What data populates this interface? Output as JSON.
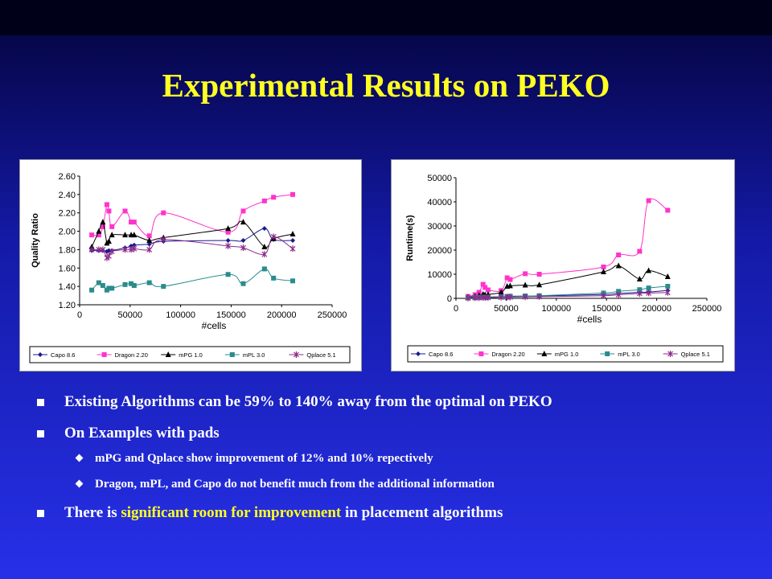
{
  "title": "Experimental Results on PEKO",
  "bullets": {
    "b1": "Existing Algorithms can be 59% to 140% away from the optimal on PEKO",
    "b2": "On Examples with pads",
    "sub1": "mPG and Qplace show improvement of 12% and 10% repectively",
    "sub2": "Dragon, mPL, and Capo do not benefit much from the additional information",
    "b3_pre": "There is ",
    "b3_highlight": "significant room for improvement",
    "b3_post": " in placement algorithms"
  },
  "chart_data": [
    {
      "type": "line",
      "xlabel": "#cells",
      "ylabel": "Quality Ratio",
      "xlim": [
        0,
        250000
      ],
      "ylim": [
        1.2,
        2.6
      ],
      "xticks": [
        0,
        50000,
        100000,
        150000,
        200000,
        250000
      ],
      "yticks": [
        1.2,
        1.4,
        1.6,
        1.8,
        2.0,
        2.2,
        2.4,
        2.6
      ],
      "ytick_labels": [
        "1.20",
        "1.40",
        "1.60",
        "1.80",
        "2.00",
        "2.20",
        "2.40",
        "2.60"
      ],
      "legend_position": "bottom",
      "series": [
        {
          "name": "Capo 8.6",
          "color": "#1a1a8c",
          "marker": "diamond",
          "x": [
            12000,
            19000,
            23000,
            27000,
            29000,
            32000,
            45000,
            51000,
            54000,
            69000,
            83000,
            147000,
            162000,
            183000,
            192000,
            211000
          ],
          "y": [
            1.79,
            1.79,
            1.79,
            1.78,
            1.79,
            1.79,
            1.82,
            1.84,
            1.85,
            1.86,
            1.89,
            1.9,
            1.9,
            2.03,
            1.91,
            1.9
          ]
        },
        {
          "name": "Dragon 2.20",
          "color": "#ff33cc",
          "marker": "square",
          "x": [
            12000,
            19000,
            23000,
            27000,
            29000,
            32000,
            45000,
            51000,
            54000,
            69000,
            83000,
            147000,
            162000,
            183000,
            192000,
            211000
          ],
          "y": [
            1.96,
            1.96,
            2.05,
            2.29,
            2.22,
            2.05,
            2.22,
            2.1,
            2.1,
            1.95,
            2.2,
            1.99,
            2.22,
            2.33,
            2.37,
            2.4
          ]
        },
        {
          "name": "mPG 1.0",
          "color": "#000000",
          "marker": "triangle",
          "x": [
            12000,
            19000,
            23000,
            27000,
            29000,
            32000,
            45000,
            51000,
            54000,
            69000,
            83000,
            147000,
            162000,
            183000,
            192000,
            211000
          ],
          "y": [
            1.83,
            2.0,
            2.1,
            1.87,
            1.89,
            1.96,
            1.96,
            1.96,
            1.96,
            1.9,
            1.93,
            2.03,
            2.1,
            1.83,
            1.92,
            1.97
          ]
        },
        {
          "name": "mPL 3.0",
          "color": "#2a8c8c",
          "marker": "square",
          "x": [
            12000,
            19000,
            23000,
            27000,
            29000,
            32000,
            45000,
            51000,
            54000,
            69000,
            83000,
            147000,
            162000,
            183000,
            192000,
            211000
          ],
          "y": [
            1.36,
            1.44,
            1.41,
            1.36,
            1.38,
            1.38,
            1.42,
            1.43,
            1.41,
            1.44,
            1.4,
            1.53,
            1.43,
            1.59,
            1.49,
            1.46
          ]
        },
        {
          "name": "Qplace 5.1",
          "color": "#8c2a8c",
          "marker": "star",
          "x": [
            12000,
            19000,
            23000,
            27000,
            29000,
            32000,
            45000,
            51000,
            54000,
            69000,
            83000,
            147000,
            162000,
            183000,
            192000,
            211000
          ],
          "y": [
            1.8,
            1.8,
            1.8,
            1.71,
            1.73,
            1.78,
            1.8,
            1.8,
            1.81,
            1.8,
            1.91,
            1.84,
            1.82,
            1.75,
            1.94,
            1.81
          ]
        }
      ]
    },
    {
      "type": "line",
      "xlabel": "#cells",
      "ylabel": "Runtime(s)",
      "xlim": [
        0,
        250000
      ],
      "ylim": [
        0,
        50000
      ],
      "xticks": [
        0,
        50000,
        100000,
        150000,
        200000,
        250000
      ],
      "yticks": [
        0,
        10000,
        20000,
        30000,
        40000,
        50000
      ],
      "ytick_labels": [
        "0",
        "10000",
        "20000",
        "30000",
        "40000",
        "50000"
      ],
      "legend_position": "bottom",
      "series": [
        {
          "name": "Capo 8.6",
          "color": "#1a1a8c",
          "marker": "diamond",
          "x": [
            12000,
            19000,
            23000,
            27000,
            29000,
            32000,
            45000,
            51000,
            54000,
            69000,
            83000,
            147000,
            162000,
            183000,
            192000,
            211000
          ],
          "y": [
            300,
            400,
            400,
            500,
            500,
            500,
            700,
            700,
            800,
            900,
            1000,
            1600,
            2000,
            2500,
            2600,
            3300
          ]
        },
        {
          "name": "Dragon 2.20",
          "color": "#ff33cc",
          "marker": "square",
          "x": [
            12000,
            19000,
            23000,
            27000,
            29000,
            32000,
            45000,
            51000,
            54000,
            69000,
            83000,
            147000,
            162000,
            183000,
            192000,
            211000
          ],
          "y": [
            800,
            1500,
            2500,
            5800,
            4500,
            3500,
            3200,
            8500,
            7800,
            10200,
            10000,
            13000,
            18000,
            19500,
            40500,
            36500
          ]
        },
        {
          "name": "mPG 1.0",
          "color": "#000000",
          "marker": "triangle",
          "x": [
            12000,
            19000,
            23000,
            27000,
            29000,
            32000,
            45000,
            51000,
            54000,
            69000,
            83000,
            147000,
            162000,
            183000,
            192000,
            211000
          ],
          "y": [
            500,
            800,
            1200,
            1700,
            1500,
            1600,
            2500,
            5000,
            5200,
            5500,
            5600,
            11000,
            13500,
            8000,
            11500,
            9000
          ]
        },
        {
          "name": "mPL 3.0",
          "color": "#2a8c8c",
          "marker": "square",
          "x": [
            12000,
            19000,
            23000,
            27000,
            29000,
            32000,
            45000,
            51000,
            54000,
            69000,
            83000,
            147000,
            162000,
            183000,
            192000,
            211000
          ],
          "y": [
            200,
            300,
            400,
            500,
            500,
            500,
            700,
            800,
            900,
            1000,
            1100,
            2200,
            2900,
            3600,
            4300,
            5000
          ]
        },
        {
          "name": "Qplace 5.1",
          "color": "#8c2a8c",
          "marker": "star",
          "x": [
            12000,
            19000,
            23000,
            27000,
            29000,
            32000,
            45000,
            51000,
            54000,
            69000,
            83000,
            147000,
            162000,
            183000,
            192000,
            211000
          ],
          "y": [
            100,
            200,
            200,
            300,
            300,
            300,
            400,
            500,
            500,
            600,
            700,
            1100,
            1500,
            2000,
            2200,
            2400
          ]
        }
      ]
    }
  ]
}
